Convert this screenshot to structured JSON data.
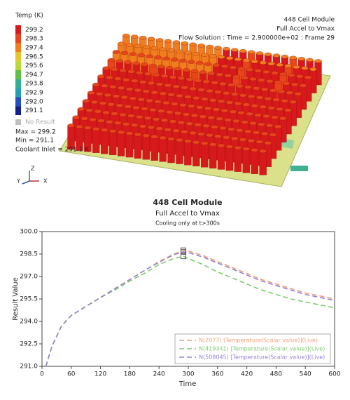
{
  "render": {
    "legend_title": "Temp (K)",
    "legend_levels": [
      {
        "label": "299.2",
        "color": "#d7191c"
      },
      {
        "label": "298.3",
        "color": "#e8461a"
      },
      {
        "label": "297.4",
        "color": "#f07d1e"
      },
      {
        "label": "296.5",
        "color": "#e9c42e"
      },
      {
        "label": "295.6",
        "color": "#b9d832"
      },
      {
        "label": "294.7",
        "color": "#5fc046"
      },
      {
        "label": "293.8",
        "color": "#2fb08e"
      },
      {
        "label": "292.9",
        "color": "#21a0b4"
      },
      {
        "label": "292.0",
        "color": "#2250c2"
      },
      {
        "label": "291.1",
        "color": "#10208a"
      }
    ],
    "no_result": "No Result",
    "max_text": "Max = 299.2",
    "min_text": "Min = 291.1",
    "coolant_text": "Coolant Inlet = 291.1 K",
    "header": [
      "448 Cell Module",
      "Full Accel to Vmax",
      "Flow Solution : Time = 2.900000e+02 : Frame 29"
    ],
    "triad": {
      "z": "Z",
      "y": "Y",
      "x": "X"
    }
  },
  "chart_data": {
    "type": "line",
    "title": "448 Cell Module",
    "subtitle": "Full Accel to Vmax",
    "note": "Cooling only at t>300s",
    "xlabel": "Time",
    "ylabel": "Result Value",
    "x": [
      8,
      20,
      40,
      60,
      90,
      120,
      150,
      180,
      210,
      240,
      270,
      290,
      300,
      330,
      360,
      390,
      420,
      450,
      480,
      510,
      540,
      570,
      600
    ],
    "series": [
      {
        "name": "N(2077) [Temperature(Scalar value)](Live)",
        "color": "#f2a07a",
        "values": [
          291.0,
          292.3,
          293.7,
          294.4,
          295.0,
          295.6,
          296.2,
          296.8,
          297.4,
          298.0,
          298.5,
          298.75,
          298.7,
          298.4,
          298.0,
          297.6,
          297.2,
          296.8,
          296.5,
          296.2,
          295.9,
          295.7,
          295.5
        ]
      },
      {
        "name": "N(419341) [Temperature(Scalar value)](Live)",
        "color": "#7ccc6c",
        "values": [
          291.0,
          292.3,
          293.7,
          294.4,
          295.0,
          295.6,
          296.1,
          296.7,
          297.2,
          297.8,
          298.2,
          298.35,
          298.2,
          297.8,
          297.3,
          296.9,
          296.5,
          296.1,
          295.8,
          295.5,
          295.3,
          295.1,
          294.9
        ]
      },
      {
        "name": "N(508045) [Temperature(Scalar value)](Live)",
        "color": "#9a80d2",
        "values": [
          291.0,
          292.3,
          293.7,
          294.4,
          295.0,
          295.6,
          296.2,
          296.8,
          297.4,
          297.95,
          298.45,
          298.65,
          298.6,
          298.3,
          297.9,
          297.5,
          297.1,
          296.7,
          296.4,
          296.1,
          295.8,
          295.6,
          295.4
        ]
      }
    ],
    "marker_x": 290,
    "xlim": [
      0,
      600
    ],
    "xticks": [
      0,
      60,
      120,
      180,
      240,
      300,
      360,
      420,
      480,
      540,
      600
    ],
    "ylim": [
      291,
      300
    ],
    "yticks": [
      {
        "value": 291,
        "label": "291.0"
      },
      292.5,
      {
        "value": 294,
        "label": "294.0"
      },
      295.5,
      {
        "value": 297,
        "label": "297.0"
      },
      298.5,
      {
        "value": 300,
        "label": "300.0"
      }
    ],
    "legend": "lower right",
    "dashed": true
  }
}
